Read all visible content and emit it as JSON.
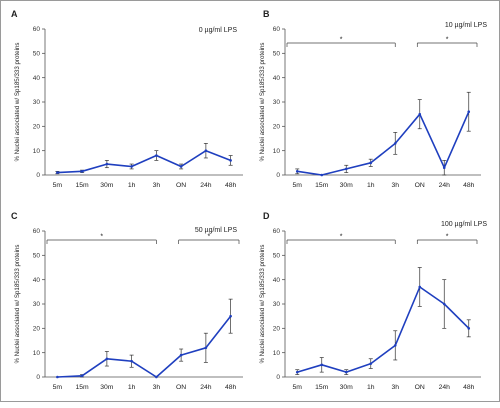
{
  "chart_data": [
    {
      "type": "line",
      "panel_label": "A",
      "annotation": "0 µg/ml LPS",
      "ylabel": "% Nuclei associated w/ Sp185/333 proteins",
      "categories": [
        "5m",
        "15m",
        "30m",
        "1h",
        "3h",
        "ON",
        "24h",
        "48h"
      ],
      "yticks": [
        "0",
        "10",
        "20",
        "30",
        "40",
        "50",
        "60"
      ],
      "ylim": [
        0,
        60
      ],
      "values": [
        1,
        1.5,
        4.5,
        3.5,
        8,
        3.5,
        10,
        6
      ],
      "errors": [
        0.5,
        0.5,
        1.5,
        1,
        2,
        1,
        3,
        2
      ],
      "significance": [],
      "color": "#1f3fbf"
    },
    {
      "type": "line",
      "panel_label": "B",
      "annotation": "10 µg/ml LPS",
      "ylabel": "% Nuclei associated w/ Sp185/333 proteins",
      "categories": [
        "5m",
        "15m",
        "30m",
        "1h",
        "3h",
        "ON",
        "24h",
        "48h"
      ],
      "yticks": [
        "0",
        "10",
        "20",
        "30",
        "40",
        "50",
        "60"
      ],
      "ylim": [
        0,
        60
      ],
      "values": [
        1.5,
        0,
        2.5,
        5,
        13,
        25,
        3,
        26
      ],
      "errors": [
        1,
        0,
        1.5,
        1.5,
        4.5,
        6,
        3,
        8
      ],
      "significance": [
        {
          "from": 0,
          "to": 4,
          "label": "*"
        },
        {
          "from": 5,
          "to": 7,
          "label": "*"
        }
      ],
      "color": "#1f3fbf"
    },
    {
      "type": "line",
      "panel_label": "C",
      "annotation": "50 µg/ml LPS",
      "ylabel": "% Nuclei associated w/ Sp185/333 proteins",
      "categories": [
        "5m",
        "15m",
        "30m",
        "1h",
        "3h",
        "ON",
        "24h",
        "48h"
      ],
      "yticks": [
        "0",
        "10",
        "20",
        "30",
        "40",
        "50",
        "60"
      ],
      "ylim": [
        0,
        60
      ],
      "values": [
        0,
        0.5,
        7.5,
        6.5,
        0,
        9,
        12,
        25
      ],
      "errors": [
        0,
        0.5,
        3,
        2.5,
        0,
        2.5,
        6,
        7
      ],
      "significance": [
        {
          "from": 0,
          "to": 4,
          "label": "*"
        },
        {
          "from": 5,
          "to": 7,
          "label": "*"
        }
      ],
      "color": "#1f3fbf"
    },
    {
      "type": "line",
      "panel_label": "D",
      "annotation": "100 µg/ml LPS",
      "ylabel": "% Nuclei associated w/ Sp185/333 proteins",
      "categories": [
        "5m",
        "15m",
        "30m",
        "1h",
        "3h",
        "ON",
        "24h",
        "48h"
      ],
      "yticks": [
        "0",
        "10",
        "20",
        "30",
        "40",
        "50",
        "60"
      ],
      "ylim": [
        0,
        60
      ],
      "values": [
        2,
        5,
        2,
        5.5,
        13,
        37,
        30,
        20
      ],
      "errors": [
        1,
        3,
        1,
        2,
        6,
        8,
        10,
        3.5
      ],
      "significance": [
        {
          "from": 0,
          "to": 4,
          "label": "*"
        },
        {
          "from": 5,
          "to": 7,
          "label": "*"
        }
      ],
      "color": "#1f3fbf"
    }
  ]
}
